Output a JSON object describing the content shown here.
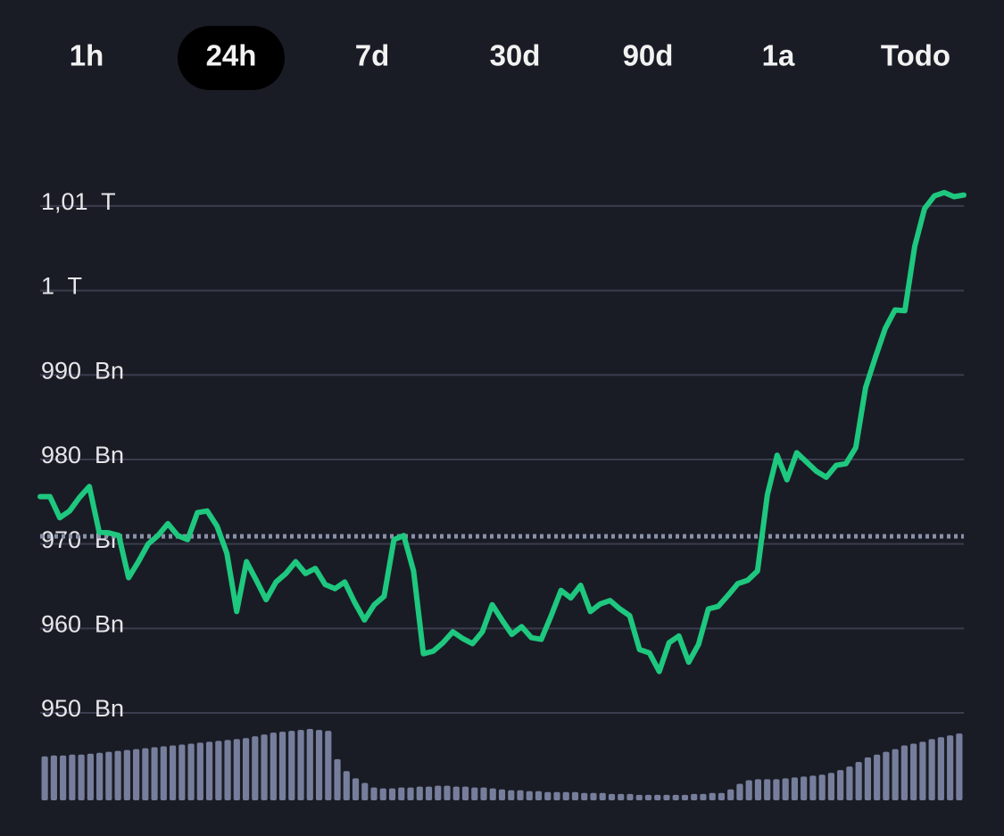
{
  "tabs": [
    "1h",
    "24h",
    "7d",
    "30d",
    "90d",
    "1a",
    "Todo"
  ],
  "active_tab": 1,
  "chart_data": [
    {
      "type": "line",
      "color": "#1ec87f",
      "grid": true,
      "reference_line": 970.9,
      "ylim": [
        950,
        1012
      ],
      "yticks": [
        {
          "value": 950,
          "label": "950  Bn"
        },
        {
          "value": 960,
          "label": "960  Bn"
        },
        {
          "value": 970,
          "label": "970  Bn"
        },
        {
          "value": 980,
          "label": "980  Bn"
        },
        {
          "value": 990,
          "label": "990  Bn"
        },
        {
          "value": 1000,
          "label": "1  T"
        },
        {
          "value": 1010,
          "label": "1,01  T"
        }
      ],
      "values": [
        975.6,
        975.6,
        973.1,
        973.9,
        975.5,
        976.8,
        971.4,
        971.3,
        971.0,
        966.0,
        967.9,
        970.0,
        971.0,
        972.4,
        971.0,
        970.5,
        973.7,
        973.9,
        972.1,
        968.9,
        962.0,
        967.9,
        965.7,
        963.4,
        965.5,
        966.5,
        967.9,
        966.5,
        967.1,
        965.2,
        964.7,
        965.5,
        963.1,
        961.0,
        962.8,
        963.8,
        970.5,
        971.0,
        966.8,
        957.0,
        957.3,
        958.3,
        959.6,
        958.8,
        958.2,
        959.6,
        962.8,
        961.0,
        959.3,
        960.2,
        958.9,
        958.7,
        961.5,
        964.5,
        963.6,
        965.1,
        962.0,
        962.9,
        963.3,
        962.3,
        961.5,
        957.5,
        957.1,
        954.9,
        958.3,
        959.1,
        956.0,
        958.1,
        962.3,
        962.6,
        963.9,
        965.3,
        965.7,
        966.8,
        975.8,
        980.5,
        977.6,
        980.8,
        979.7,
        978.6,
        977.9,
        979.3,
        979.5,
        981.4,
        988.5,
        992.1,
        995.5,
        997.7,
        997.6,
        1005.2,
        1009.7,
        1011.2,
        1011.6,
        1011.1,
        1011.3
      ]
    },
    {
      "type": "bar",
      "color": "#767e9c",
      "ylim": [
        0,
        80
      ],
      "values": [
        48,
        49,
        49,
        50,
        50,
        51,
        52,
        53,
        54,
        55,
        56,
        57,
        58,
        59,
        60,
        61,
        62,
        63,
        64,
        65,
        66,
        67,
        68,
        70,
        72,
        74,
        75,
        76,
        77,
        78,
        77,
        76,
        45,
        32,
        24,
        19,
        14,
        13,
        13,
        14,
        14,
        15,
        15,
        16,
        16,
        15,
        15,
        14,
        14,
        13,
        12,
        11,
        11,
        10,
        10,
        9,
        9,
        9,
        9,
        8,
        8,
        8,
        7,
        7,
        7,
        6,
        6,
        6,
        6,
        6,
        6,
        7,
        7,
        8,
        8,
        12,
        18,
        22,
        23,
        23,
        23,
        24,
        25,
        26,
        27,
        28,
        30,
        33,
        37,
        42,
        47,
        50,
        53,
        56,
        60,
        62,
        64,
        67,
        69,
        71,
        73
      ]
    }
  ]
}
